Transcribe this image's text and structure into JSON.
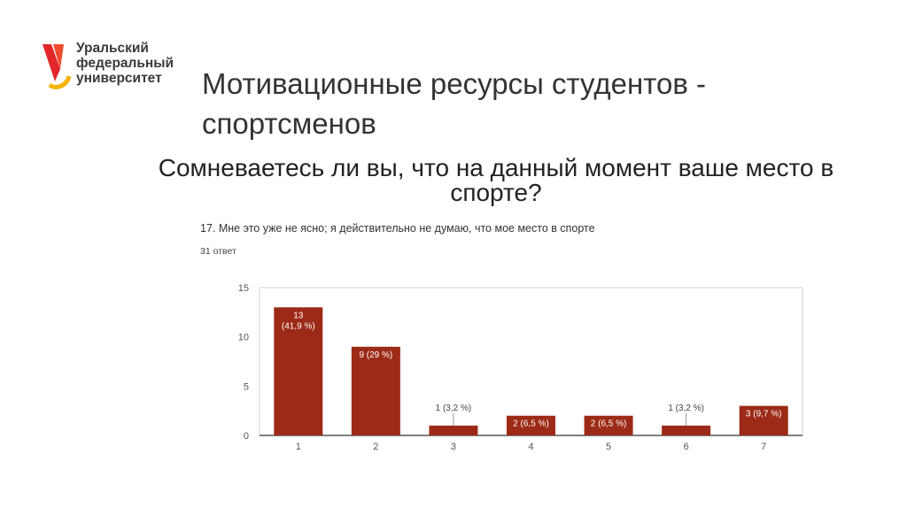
{
  "logo": {
    "lines": [
      "Уральский",
      "федеральный",
      "университет"
    ],
    "colors": {
      "mark_primary": "#e3262a",
      "mark_accent": "#f6b400"
    }
  },
  "title": "Мотивационные ресурсы студентов - спортсменов",
  "subtitle": "Сомневаетесь ли вы, что на данный момент ваше место в спорте?",
  "survey": {
    "question": "17. Мне это уже не ясно; я действительно не думаю, что мое место в спорте",
    "responses": "31 ответ"
  },
  "chart_data": {
    "type": "bar",
    "categories": [
      "1",
      "2",
      "3",
      "4",
      "5",
      "6",
      "7"
    ],
    "values": [
      13,
      9,
      1,
      2,
      2,
      1,
      3
    ],
    "data_labels": [
      "13\n(41,9 %)",
      "9 (29 %)",
      "1 (3,2 %)",
      "2 (6,5 %)",
      "2 (6,5 %)",
      "1 (3,2 %)",
      "3 (9,7 %)"
    ],
    "ylim": [
      0,
      15
    ],
    "yticks": [
      0,
      5,
      10,
      15
    ],
    "grid": false,
    "bar_color": "#9c2a16"
  }
}
